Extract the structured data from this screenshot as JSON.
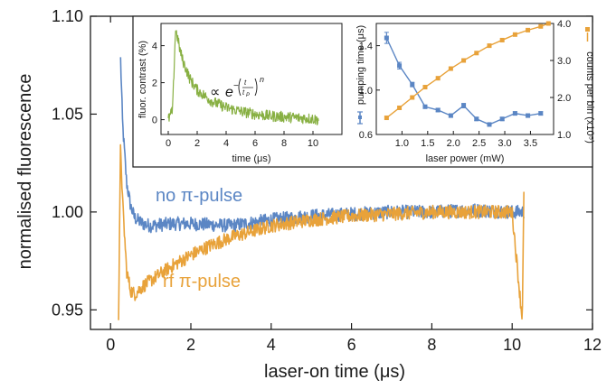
{
  "colors": {
    "blue": "#5b86c4",
    "orange": "#e8a23a",
    "green": "#88b043",
    "axis": "#1a1a1a"
  },
  "chart_data": [
    {
      "type": "line",
      "xlabel": "laser-on time (μs)",
      "ylabel": "normalised fluorescence",
      "xlim": [
        -0.5,
        12
      ],
      "ylim": [
        0.94,
        1.1
      ],
      "xticks": [
        0,
        2,
        4,
        6,
        8,
        10,
        12
      ],
      "xtick_labels": [
        "0",
        "2",
        "4",
        "6",
        "8",
        "10",
        "12"
      ],
      "yticks": [
        0.95,
        1.0,
        1.05,
        1.1
      ],
      "ytick_labels": [
        "0.95",
        "1.00",
        "1.05",
        "1.10"
      ],
      "grid": false,
      "annotations": [
        "no π-pulse",
        "rf π-pulse"
      ],
      "series": [
        {
          "name": "no π-pulse",
          "color": "#5b86c4",
          "x": [
            0.25,
            0.3,
            0.4,
            0.5,
            0.6,
            0.8,
            1.0,
            1.5,
            2.0,
            3.0,
            4.0,
            5.0,
            6.0,
            7.0,
            8.0,
            9.0,
            10.0,
            10.3
          ],
          "y": [
            1.078,
            1.045,
            1.015,
            1.003,
            0.997,
            0.994,
            0.993,
            0.994,
            0.994,
            0.993,
            0.996,
            0.998,
            0.999,
            1.0,
            1.0,
            1.001,
            1.0,
            1.0
          ]
        },
        {
          "name": "rf π-pulse",
          "color": "#e8a23a",
          "x": [
            0.2,
            0.25,
            0.3,
            0.4,
            0.5,
            0.6,
            0.8,
            1.0,
            1.5,
            2.0,
            2.5,
            3.0,
            4.0,
            5.0,
            6.0,
            7.0,
            8.0,
            9.0,
            10.0,
            10.25,
            10.3
          ],
          "y": [
            0.945,
            1.035,
            1.005,
            0.97,
            0.96,
            0.958,
            0.962,
            0.965,
            0.972,
            0.978,
            0.983,
            0.987,
            0.993,
            0.996,
            0.998,
            0.999,
            1.0,
            1.0,
            1.0,
            0.945,
            1.02
          ]
        }
      ]
    },
    {
      "type": "line",
      "xlabel": "time (μs)",
      "ylabel": "fluor. contrast (%)",
      "xlim": [
        -0.5,
        12
      ],
      "ylim": [
        -0.8,
        5.2
      ],
      "xticks": [
        0,
        2,
        4,
        6,
        8,
        10
      ],
      "xtick_labels": [
        "0",
        "2",
        "4",
        "6",
        "8",
        "10"
      ],
      "yticks": [
        0,
        2,
        4
      ],
      "ytick_labels": [
        "0",
        "2",
        "4"
      ],
      "series": [
        {
          "color": "#88b043",
          "x": [
            0.0,
            0.3,
            0.5,
            0.6,
            0.8,
            1.0,
            1.5,
            2.0,
            3.0,
            4.0,
            5.0,
            6.0,
            7.0,
            8.0,
            9.0,
            10.0,
            10.2,
            10.4
          ],
          "y": [
            0.0,
            0.5,
            4.9,
            4.6,
            3.8,
            3.2,
            2.2,
            1.6,
            1.0,
            0.65,
            0.45,
            0.3,
            0.2,
            0.15,
            0.1,
            0.05,
            0.0,
            0.0
          ]
        }
      ]
    },
    {
      "type": "line",
      "xlabel": "laser power (mW)",
      "ylabel": "pumping time (μs)",
      "y2label": "counts per bin (x10⁵)",
      "xlim": [
        0.5,
        3.95
      ],
      "ylim": [
        0.6,
        1.6
      ],
      "y2lim": [
        1.0,
        4.0
      ],
      "xticks": [
        1.0,
        1.5,
        2.0,
        2.5,
        3.0,
        3.5
      ],
      "xtick_labels": [
        "1.0",
        "1.5",
        "2.0",
        "2.5",
        "3.0",
        "3.5"
      ],
      "yticks": [
        0.6,
        1.0,
        1.4
      ],
      "ytick_labels": [
        "0.6",
        "1.0",
        "1.4"
      ],
      "y2ticks": [
        1.0,
        2.0,
        3.0,
        4.0
      ],
      "y2tick_labels": [
        "1.0",
        "2.0",
        "3.0",
        "4.0"
      ],
      "series": [
        {
          "name": "pumping time",
          "axis": "left",
          "color": "#5b86c4",
          "x": [
            0.7,
            0.95,
            1.2,
            1.45,
            1.7,
            1.95,
            2.2,
            2.45,
            2.7,
            2.95,
            3.2,
            3.45,
            3.7
          ],
          "y": [
            1.47,
            1.22,
            1.05,
            0.85,
            0.82,
            0.77,
            0.86,
            0.74,
            0.69,
            0.74,
            0.79,
            0.77,
            0.79
          ],
          "err": [
            0.05,
            0.03,
            0.02,
            0.015,
            0.015,
            0.015,
            0.02,
            0.015,
            0.015,
            0.015,
            0.015,
            0.015,
            0.015
          ]
        },
        {
          "name": "counts per bin",
          "axis": "right",
          "color": "#e8a23a",
          "x": [
            0.7,
            0.95,
            1.2,
            1.45,
            1.7,
            1.95,
            2.2,
            2.45,
            2.7,
            2.95,
            3.2,
            3.45,
            3.7,
            3.85
          ],
          "y": [
            1.45,
            1.72,
            2.0,
            2.28,
            2.52,
            2.78,
            3.0,
            3.2,
            3.4,
            3.55,
            3.7,
            3.82,
            3.92,
            4.0
          ]
        }
      ]
    }
  ]
}
